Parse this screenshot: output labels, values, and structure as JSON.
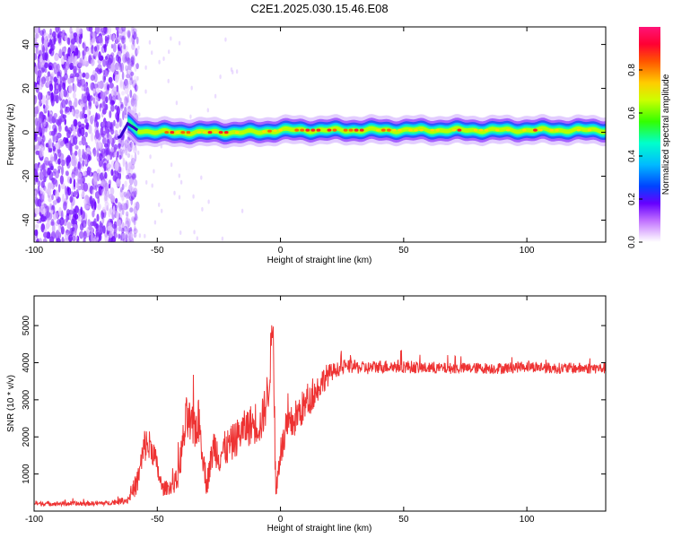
{
  "title": "C2E1.2025.030.15.46.E08",
  "chart_data": [
    {
      "type": "heatmap",
      "xlabel": "Height of straight line (km)",
      "ylabel": "Frequency (Hz)",
      "xlim": [
        -100,
        132
      ],
      "ylim": [
        -50,
        48
      ],
      "xticks": [
        "-100",
        "-50",
        "0",
        "50",
        "100"
      ],
      "yticks": [
        "40",
        "20",
        "0",
        "-20",
        "-40"
      ],
      "colorbar": {
        "label": "Normalized spectral amplitude",
        "range": [
          0,
          1
        ],
        "ticks": [
          "0.0",
          "0.2",
          "0.4",
          "0.6",
          "0.8"
        ]
      },
      "center_line": {
        "x": [
          -100,
          -65,
          -62,
          -58,
          -50,
          -40,
          -30,
          -20,
          -10,
          0,
          10,
          25,
          50,
          75,
          100,
          132
        ],
        "freq": [
          -22,
          -2,
          4,
          1,
          0,
          0,
          0,
          0,
          0,
          1,
          1,
          1,
          1,
          1,
          1,
          1
        ]
      },
      "noise_region_x": [
        -100,
        -60
      ]
    },
    {
      "type": "line",
      "xlabel": "Height of straight line (km)",
      "ylabel": "SNR (10 * v/v)",
      "xlim": [
        -100,
        132
      ],
      "ylim": [
        0,
        5800
      ],
      "xticks": [
        "-100",
        "-50",
        "0",
        "50",
        "100"
      ],
      "yticks": [
        "1000",
        "2000",
        "3000",
        "4000",
        "5000"
      ],
      "series": [
        {
          "color": "#ee3333",
          "x": [
            -100,
            -80,
            -70,
            -62,
            -58,
            -55,
            -52,
            -48,
            -45,
            -42,
            -38,
            -36,
            -33,
            -30,
            -27,
            -25,
            -22,
            -20,
            -15,
            -10,
            -8,
            -5,
            -3,
            -2,
            0,
            3,
            8,
            12,
            18,
            22,
            28,
            35,
            40,
            50,
            60,
            75,
            90,
            100,
            110,
            120,
            132
          ],
          "y": [
            200,
            200,
            220,
            300,
            800,
            1800,
            1700,
            600,
            650,
            800,
            2500,
            2200,
            2400,
            700,
            1800,
            1500,
            1700,
            1800,
            2200,
            2400,
            2300,
            3200,
            5200,
            400,
            1600,
            2200,
            2700,
            3000,
            3600,
            3800,
            3900,
            3850,
            3900,
            3900,
            3850,
            3850,
            3850,
            3900,
            3850,
            3850,
            3850
          ],
          "amp": [
            60,
            60,
            60,
            100,
            350,
            500,
            450,
            200,
            200,
            300,
            700,
            600,
            650,
            300,
            500,
            500,
            500,
            500,
            500,
            600,
            500,
            700,
            500,
            300,
            400,
            500,
            500,
            400,
            350,
            200,
            180,
            180,
            180,
            180,
            150,
            150,
            150,
            150,
            150,
            150,
            150
          ]
        }
      ]
    }
  ]
}
